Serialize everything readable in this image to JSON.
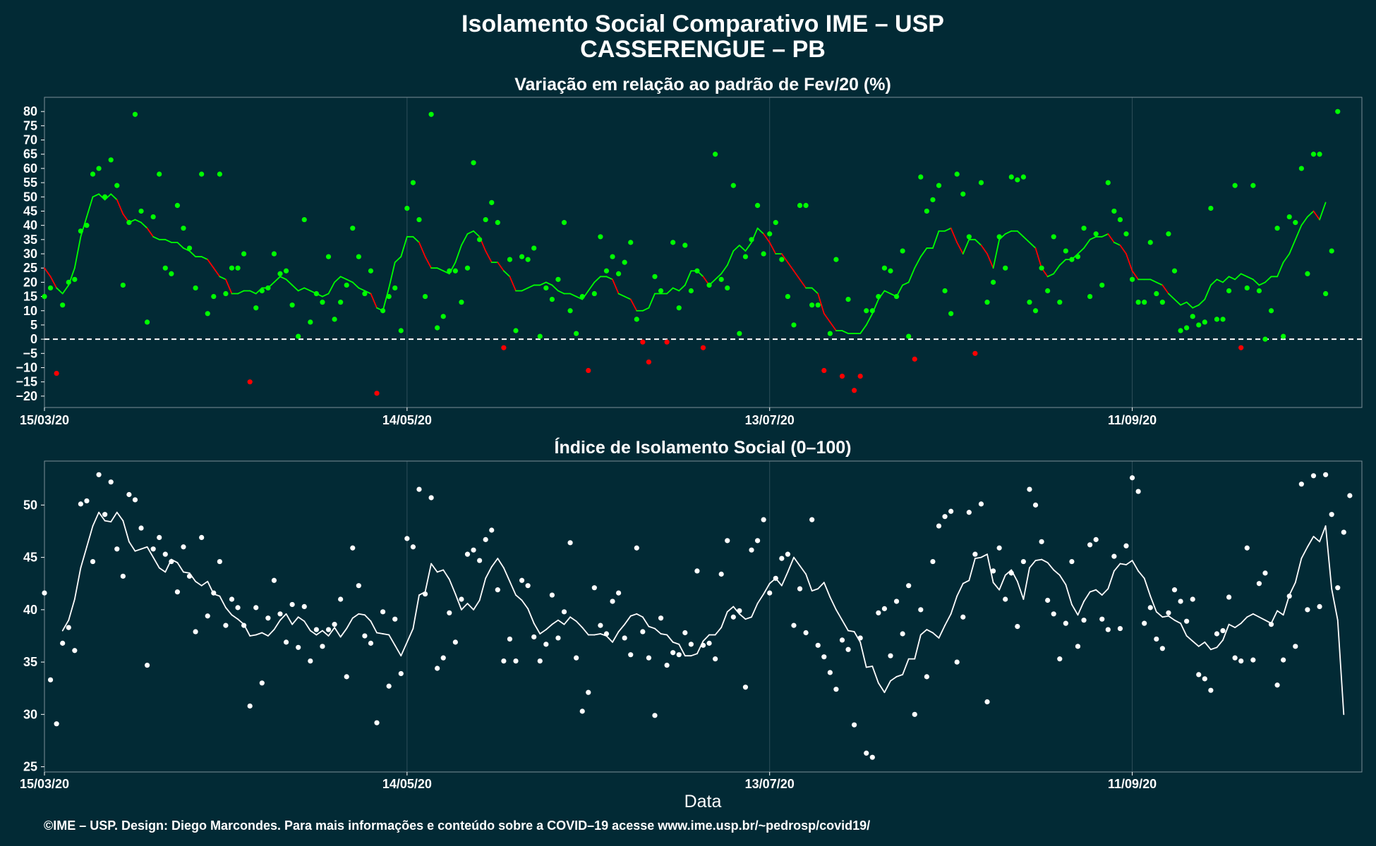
{
  "title": "Isolamento Social Comparativo IME – USP",
  "subtitle": "CASSERENGUE – PB",
  "xlabel": "Data",
  "footer": "©IME – USP. Design: Diego Marcondes. Para mais informações e conteúdo sobre a COVID–19 acesse www.ime.usp.br/~pedrosp/covid19/",
  "colors": {
    "background": "#022a35",
    "positive": "#00ff00",
    "negative": "#ff0000",
    "index": "#ffffff"
  },
  "chart_data": [
    {
      "type": "scatter",
      "title": "Variação em relação ao padrão de Fev/20 (%)",
      "x_start": "15/03/20",
      "x_ticks": [
        "15/03/20",
        "14/05/20",
        "13/07/20",
        "11/09/20"
      ],
      "x_tick_days": [
        0,
        60,
        120,
        180
      ],
      "x_range_days": [
        0,
        218
      ],
      "ylim": [
        -24,
        85
      ],
      "y_ticks": [
        -20,
        -15,
        -10,
        -5,
        0,
        5,
        10,
        15,
        20,
        25,
        30,
        35,
        40,
        45,
        50,
        55,
        60,
        65,
        70,
        75,
        80
      ],
      "reference_line": 0,
      "points": [
        15,
        18,
        -12,
        12,
        20,
        21,
        38,
        40,
        58,
        60,
        50,
        63,
        54,
        19,
        41,
        79,
        45,
        6,
        43,
        58,
        25,
        23,
        47,
        39,
        32,
        18,
        58,
        9,
        15,
        58,
        16,
        25,
        25,
        30,
        -15,
        11,
        17,
        18,
        30,
        23,
        24,
        12,
        1,
        42,
        6,
        16,
        13,
        29,
        7,
        13,
        19,
        39,
        29,
        16,
        24,
        -19,
        10,
        15,
        18,
        3,
        46,
        55,
        42,
        15,
        79,
        4,
        8,
        24,
        24,
        13,
        25,
        62,
        35,
        42,
        48,
        41,
        -3,
        28,
        3,
        29,
        28,
        32,
        1,
        18,
        14,
        21,
        41,
        10,
        2,
        15,
        -11,
        16,
        36,
        24,
        29,
        23,
        27,
        34,
        7,
        -1,
        -8,
        22,
        17,
        -1,
        34,
        11,
        33,
        17,
        24,
        -3,
        19,
        65,
        21,
        18,
        54,
        2,
        29,
        35,
        47,
        30,
        37,
        41,
        28,
        15,
        5,
        47,
        47,
        12,
        12,
        -11,
        2,
        28,
        -13,
        14,
        -18,
        -13,
        10,
        10,
        15,
        25,
        24,
        15,
        31,
        1,
        -7,
        57,
        45,
        49,
        54,
        17,
        9,
        58,
        51,
        36,
        -5,
        55,
        13,
        20,
        36,
        25,
        57,
        56,
        57,
        13,
        10,
        25,
        17,
        36,
        13,
        31,
        28,
        29,
        39,
        15,
        37,
        19,
        55,
        45,
        42,
        37,
        21,
        13,
        13,
        34,
        16,
        13,
        37,
        24,
        3,
        4,
        8,
        5,
        6,
        46,
        7,
        7,
        17,
        54,
        -3,
        18,
        54,
        17,
        0,
        10,
        39,
        1,
        43,
        41,
        60,
        23,
        65,
        65,
        16,
        31,
        80
      ],
      "moving_average": [
        25,
        22,
        18,
        16,
        19,
        25,
        36,
        43,
        50,
        51,
        49,
        51,
        49,
        44,
        41,
        42,
        41,
        39,
        36,
        35,
        35,
        34,
        34,
        32,
        31,
        29,
        29,
        28,
        25,
        22,
        21,
        16,
        16,
        17,
        17,
        16,
        18,
        18,
        20,
        22,
        21,
        19,
        17,
        18,
        17,
        16,
        15,
        16,
        20,
        22,
        21,
        20,
        18,
        17,
        16,
        11,
        10,
        18,
        27,
        29,
        36,
        36,
        34,
        29,
        25,
        25,
        24,
        23,
        27,
        33,
        37,
        38,
        36,
        31,
        27,
        27,
        24,
        22,
        17,
        17,
        18,
        19,
        19,
        20,
        19,
        17,
        16,
        16,
        15,
        14,
        17,
        20,
        22,
        22,
        21,
        16,
        15,
        14,
        10,
        10,
        11,
        16,
        16,
        16,
        18,
        17,
        19,
        24,
        24,
        22,
        19,
        21,
        23,
        26,
        31,
        33,
        31,
        34,
        39,
        37,
        34,
        30,
        30,
        27,
        24,
        21,
        18,
        18,
        16,
        9,
        6,
        3,
        3,
        2,
        2,
        2,
        5,
        9,
        14,
        17,
        16,
        15,
        19,
        20,
        25,
        29,
        32,
        32,
        38,
        38,
        39,
        34,
        30,
        35,
        35,
        33,
        30,
        25,
        35,
        37,
        38,
        38,
        36,
        34,
        32,
        25,
        22,
        23,
        26,
        28,
        28,
        30,
        32,
        35,
        36,
        36,
        37,
        34,
        33,
        30,
        24,
        21,
        21,
        21,
        20,
        19,
        16,
        14,
        12,
        13,
        11,
        12,
        14,
        19,
        21,
        20,
        22,
        21,
        23,
        22,
        21,
        19,
        20,
        22,
        22,
        27,
        30,
        35,
        40,
        43,
        45,
        42,
        48
      ]
    },
    {
      "type": "scatter",
      "title": "Índice de Isolamento Social (0–100)",
      "x_start": "15/03/20",
      "x_ticks": [
        "15/03/20",
        "14/05/20",
        "13/07/20",
        "11/09/20"
      ],
      "x_tick_days": [
        0,
        60,
        120,
        180
      ],
      "x_range_days": [
        0,
        218
      ],
      "ylim": [
        24.5,
        54.2
      ],
      "y_ticks": [
        25,
        30,
        35,
        40,
        45,
        50
      ],
      "points": [
        41.6,
        33.3,
        29.1,
        36.8,
        38.3,
        36.1,
        50.1,
        50.4,
        44.6,
        52.9,
        49.1,
        52.2,
        45.8,
        43.2,
        51.0,
        50.5,
        47.8,
        34.7,
        45.8,
        46.9,
        45.3,
        44.6,
        41.7,
        46.0,
        43.2,
        37.9,
        46.9,
        39.4,
        41.6,
        44.6,
        38.5,
        41.0,
        40.2,
        38.5,
        30.8,
        40.2,
        33.0,
        39.2,
        42.8,
        39.6,
        36.9,
        40.5,
        36.4,
        40.3,
        35.1,
        38.1,
        36.5,
        38.1,
        38.6,
        41.0,
        33.6,
        45.9,
        42.3,
        37.5,
        36.8,
        29.2,
        39.8,
        32.7,
        39.1,
        33.9,
        46.8,
        46.0,
        51.5,
        41.5,
        50.7,
        34.4,
        35.4,
        39.7,
        36.9,
        41.0,
        45.3,
        45.7,
        44.7,
        46.7,
        47.6,
        41.9,
        35.1,
        37.2,
        35.1,
        42.8,
        42.3,
        37.4,
        35.1,
        36.7,
        41.4,
        37.3,
        39.8,
        46.4,
        35.4,
        30.3,
        32.1,
        42.1,
        38.5,
        37.7,
        40.8,
        41.6,
        37.3,
        35.7,
        45.9,
        37.9,
        35.4,
        29.9,
        39.2,
        34.7,
        35.9,
        35.7,
        37.8,
        36.7,
        43.7,
        36.6,
        36.8,
        35.3,
        43.4,
        46.6,
        39.3,
        39.9,
        32.6,
        45.7,
        46.6,
        48.6,
        41.6,
        43.0,
        44.9,
        45.3,
        38.5,
        42.0,
        37.8,
        48.6,
        36.6,
        35.5,
        34.0,
        32.4,
        37.1,
        36.2,
        29.0,
        37.3,
        26.3,
        25.9,
        39.7,
        40.1,
        35.6,
        40.8,
        37.7,
        42.3,
        30.0,
        40.0,
        33.6,
        44.6,
        48.0,
        48.9,
        49.4,
        35.0,
        39.3,
        49.3,
        45.3,
        50.1,
        31.2,
        43.7,
        45.9,
        41.0,
        43.5,
        38.4,
        44.6,
        51.5,
        50.0,
        46.5,
        40.9,
        39.6,
        35.3,
        38.7,
        44.6,
        36.5,
        39.0,
        46.2,
        46.7,
        39.1,
        38.1,
        45.1,
        38.2,
        46.1,
        52.6,
        51.3,
        38.7,
        40.2,
        37.2,
        36.3,
        39.7,
        41.9,
        40.8,
        38.9,
        41.0,
        33.8,
        33.4,
        32.3,
        37.7,
        38.0,
        41.2,
        35.4,
        35.1,
        45.9,
        35.2,
        42.5,
        43.5,
        38.6,
        32.8,
        35.2,
        41.3,
        36.5,
        52.0,
        40.0,
        52.8,
        40.3,
        52.9,
        49.1,
        42.1,
        47.4,
        50.9
      ],
      "moving_average": [
        38.0,
        39.0,
        41.0,
        44.0,
        46.0,
        48.0,
        49.3,
        48.5,
        48.4,
        49.3,
        48.5,
        46.5,
        45.6,
        45.8,
        46.0,
        45.0,
        44.0,
        43.6,
        44.8,
        44.5,
        43.6,
        43.5,
        42.7,
        42.3,
        42.7,
        41.5,
        41.3,
        40.2,
        39.5,
        39.1,
        38.6,
        37.5,
        37.6,
        37.8,
        37.5,
        38.1,
        39.0,
        39.6,
        38.6,
        39.3,
        38.9,
        38.0,
        37.6,
        38.0,
        37.5,
        38.3,
        37.4,
        38.2,
        39.2,
        39.6,
        39.5,
        38.9,
        37.8,
        37.7,
        37.6,
        36.6,
        35.6,
        36.9,
        38.2,
        41.4,
        41.7,
        44.4,
        43.6,
        43.8,
        42.9,
        41.5,
        40.0,
        40.6,
        40.0,
        40.9,
        43.0,
        44.1,
        44.9,
        44.0,
        42.7,
        41.4,
        40.9,
        40.1,
        38.7,
        37.7,
        38.1,
        38.6,
        39.0,
        38.6,
        39.3,
        38.9,
        38.3,
        37.6,
        37.6,
        37.7,
        37.5,
        36.9,
        37.9,
        38.6,
        39.4,
        39.6,
        39.3,
        38.4,
        38.2,
        37.7,
        37.6,
        36.9,
        36.7,
        35.6,
        35.6,
        35.8,
        37.0,
        37.6,
        37.6,
        38.3,
        39.8,
        40.3,
        39.6,
        39.1,
        39.3,
        40.6,
        41.5,
        42.5,
        43.0,
        42.3,
        43.6,
        45.0,
        44.2,
        43.4,
        41.8,
        42.0,
        42.6,
        41.2,
        40.0,
        39.0,
        38.0,
        37.9,
        36.9,
        34.5,
        34.6,
        33.0,
        32.1,
        33.2,
        33.6,
        33.8,
        35.3,
        35.3,
        37.6,
        38.1,
        37.8,
        37.3,
        38.5,
        39.6,
        41.3,
        42.5,
        42.8,
        44.9,
        45.0,
        45.3,
        42.6,
        41.9,
        43.3,
        43.8,
        42.7,
        41.0,
        44.0,
        44.7,
        44.8,
        44.5,
        43.8,
        43.3,
        42.4,
        40.5,
        39.5,
        40.8,
        41.7,
        41.9,
        41.4,
        42.0,
        43.7,
        44.4,
        44.3,
        44.7,
        43.7,
        43.0,
        41.3,
        39.8,
        39.3,
        39.4,
        39.0,
        38.7,
        37.5,
        37.0,
        36.5,
        36.9,
        36.2,
        36.4,
        37.1,
        38.6,
        38.3,
        38.7,
        39.3,
        39.6,
        39.3,
        39.0,
        38.7,
        39.9,
        39.5,
        41.4,
        42.6,
        44.9,
        46.0,
        47.0,
        46.5,
        48.0,
        42.0,
        39.0,
        30.0
      ]
    }
  ]
}
